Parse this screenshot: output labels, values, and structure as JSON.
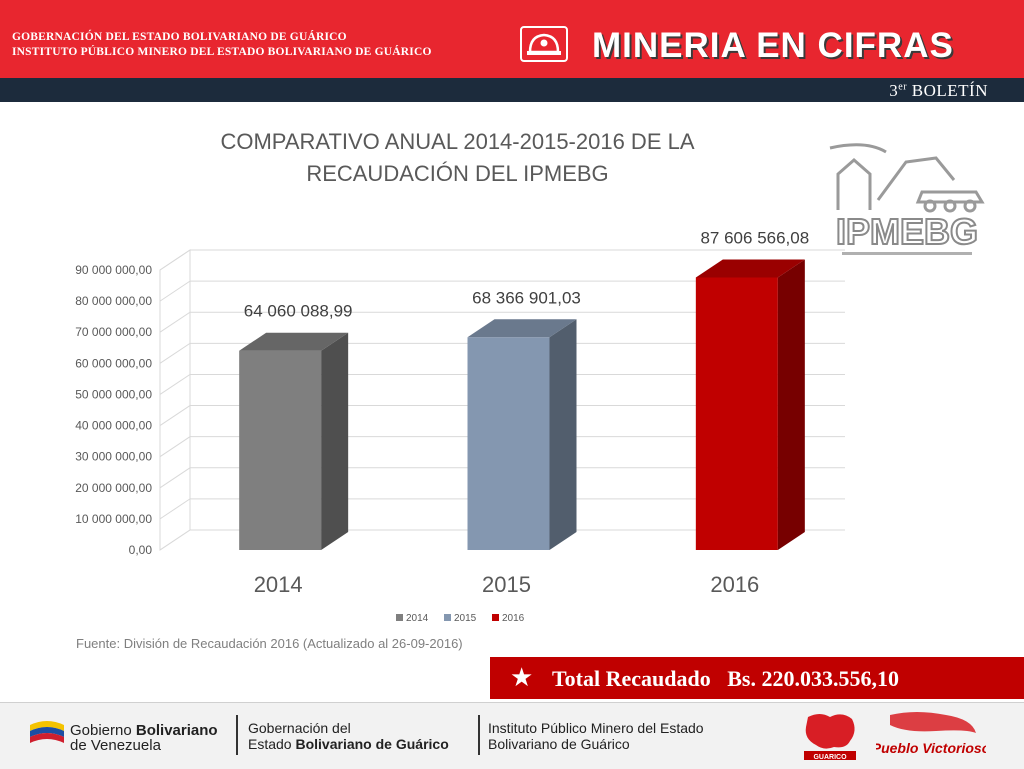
{
  "header": {
    "gov_line1": "GOBERNACIÓN DEL ESTADO BOLIVARIANO DE GUÁRICO",
    "gov_line2": "INSTITUTO PÚBLICO MINERO DEL ESTADO BOLIVARIANO DE GUÁRICO",
    "brand": "MINERIA EN CIFRAS",
    "bulletin_num": "3",
    "bulletin_sup": "er",
    "bulletin_word": " BOLETÍN"
  },
  "chart_data": {
    "type": "bar",
    "title_line1": "COMPARATIVO ANUAL 2014-2015-2016  DE LA",
    "title_line2": "RECAUDACIÓN DEL IPMEBG",
    "categories": [
      "2014",
      "2015",
      "2016"
    ],
    "series": [
      {
        "name": "2014",
        "values": [
          64060088.99,
          null,
          null
        ],
        "color": "#7f7f7f"
      },
      {
        "name": "2015",
        "values": [
          null,
          68366901.03,
          null
        ],
        "color": "#8497b0"
      },
      {
        "name": "2016",
        "values": [
          null,
          null,
          87606566.08
        ],
        "color": "#c00000"
      }
    ],
    "value_labels": [
      "64 060 088,99",
      "68 366 901,03",
      "87 606 566,08"
    ],
    "y_ticks": [
      "0,00",
      "10 000 000,00",
      "20 000 000,00",
      "30 000 000,00",
      "40 000 000,00",
      "50 000 000,00",
      "60 000 000,00",
      "70 000 000,00",
      "80 000 000,00",
      "90 000 000,00"
    ],
    "ylim": [
      0,
      90000000
    ],
    "legend": [
      "2014",
      "2015",
      "2016"
    ],
    "legend_position": "bottom",
    "grid": true,
    "style": "3d"
  },
  "logo_text": "IPMEBG",
  "source": "Fuente: División de Recaudación 2016 (Actualizado al 26-09-2016)",
  "total": {
    "text": "Total Recaudado   Bs. 220.033.556,10"
  },
  "footer": {
    "gb_line1_a": "Gobierno ",
    "gb_line1_b": "Bolivariano",
    "gb_line2": "de Venezuela",
    "gob_line1": "Gobernación del",
    "gob_line2_a": "Estado ",
    "gob_line2_b": "Bolivariano de Guárico",
    "inst_line1": "Instituto Público Minero del Estado",
    "inst_line2": "Bolivariano de Guárico",
    "guarico_logo_text": "GUARICO",
    "pueblo_logo_text": "Pueblo Victorioso"
  }
}
